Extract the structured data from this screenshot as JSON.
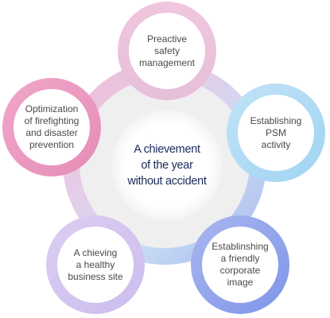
{
  "center": {
    "label": "A chievement\nof the year\nwithout accident"
  },
  "nodes": [
    {
      "id": "top",
      "label": "Preactive\nsafety\nmanagement",
      "color": "#ecc3dc"
    },
    {
      "id": "right",
      "label": "Establishing\nPSM\nactivity",
      "color": "#b1dcf5"
    },
    {
      "id": "bottom-right",
      "label": "Establinshing\na friendly\ncorporate\nimage",
      "color": "#96a7ec"
    },
    {
      "id": "bottom-left",
      "label": "A chieving\na healthy\nbusiness site",
      "color": "#d5c5f0"
    },
    {
      "id": "left",
      "label": "Optimization\nof firefighting\nand disaster\nprevention",
      "color": "#eb9bc1"
    }
  ]
}
